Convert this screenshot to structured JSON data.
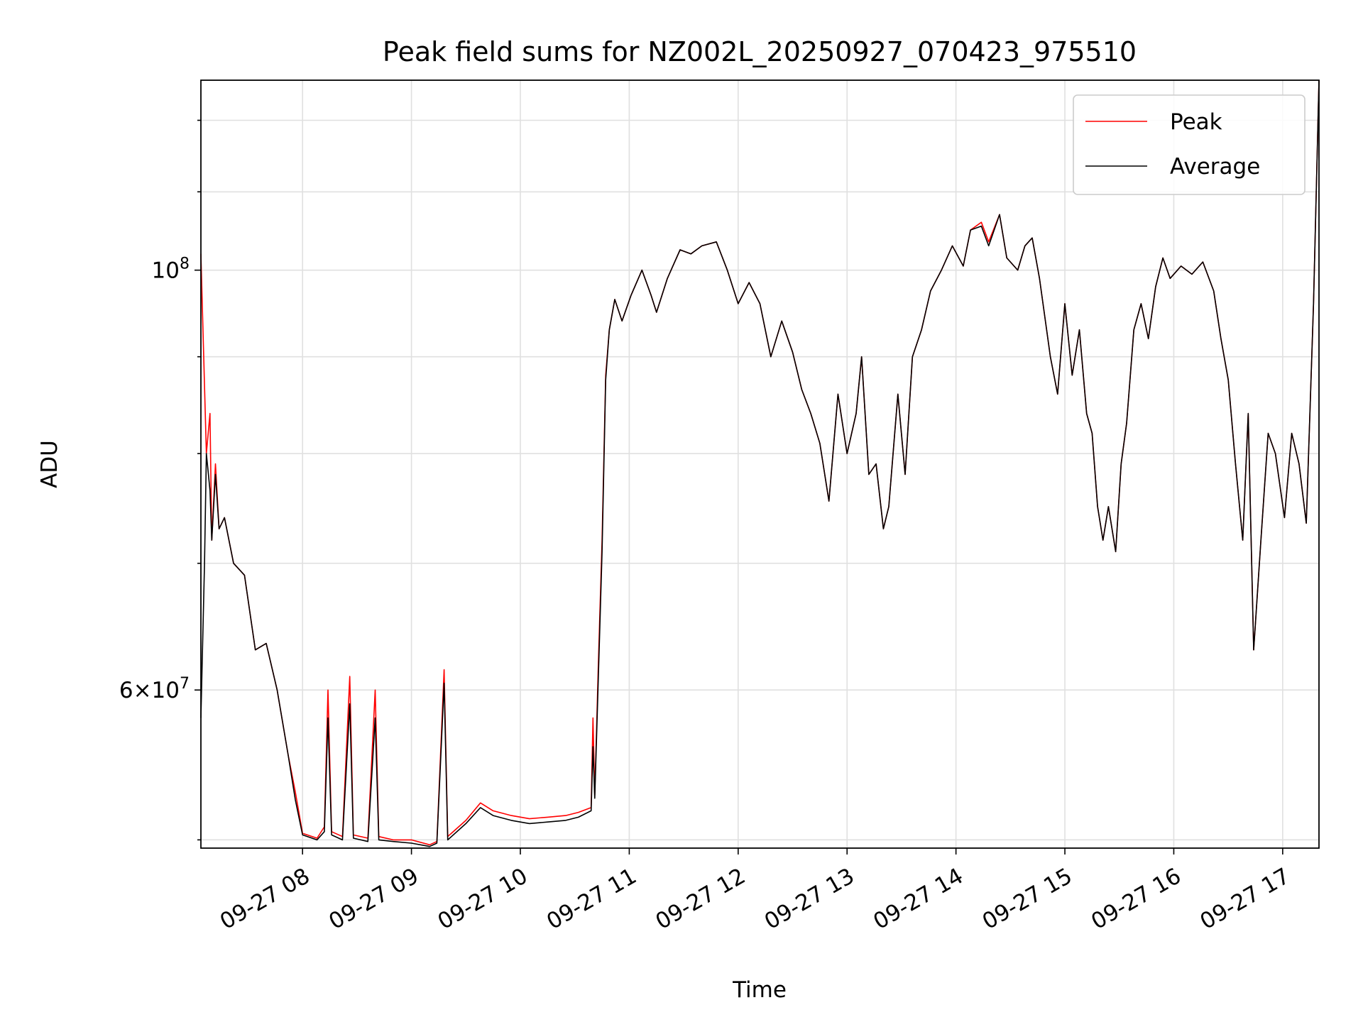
{
  "chart_data": {
    "type": "line",
    "title": "Peak field sums for NZ002L_20250927_070423_975510",
    "xlabel": "Time",
    "ylabel": "ADU",
    "y_scale": "log",
    "xlim": [
      "2025-09-27 07:04",
      "2025-09-27 17:20"
    ],
    "ylim": [
      49500000,
      126000000
    ],
    "x_ticks": [
      "09-27 08",
      "09-27 09",
      "09-27 10",
      "09-27 11",
      "09-27 12",
      "09-27 13",
      "09-27 14",
      "09-27 15",
      "09-27 16",
      "09-27 17"
    ],
    "y_ticks": [
      {
        "value": 100000000,
        "base": "10",
        "exp": "8",
        "coef": ""
      },
      {
        "value": 60000000,
        "base": "10",
        "exp": "7",
        "coef": "6"
      }
    ],
    "grid": true,
    "legend": {
      "position": "top-right",
      "entries": [
        "Peak",
        "Average"
      ]
    },
    "series": [
      {
        "name": "Peak",
        "color": "#ff0000",
        "points": [
          [
            "07:04",
            102000000
          ],
          [
            "07:07",
            80000000
          ],
          [
            "07:09",
            84000000
          ],
          [
            "07:10",
            72000000
          ],
          [
            "07:12",
            79000000
          ],
          [
            "07:14",
            73000000
          ],
          [
            "07:17",
            74000000
          ],
          [
            "07:22",
            70000000
          ],
          [
            "07:28",
            69000000
          ],
          [
            "07:34",
            63000000
          ],
          [
            "07:40",
            63500000
          ],
          [
            "07:46",
            60000000
          ],
          [
            "07:52",
            55500000
          ],
          [
            "07:56",
            53000000
          ],
          [
            "08:00",
            50400000
          ],
          [
            "08:08",
            50100000
          ],
          [
            "08:12",
            50800000
          ],
          [
            "08:14",
            60000000
          ],
          [
            "08:16",
            50500000
          ],
          [
            "08:22",
            50200000
          ],
          [
            "08:26",
            61000000
          ],
          [
            "08:28",
            50300000
          ],
          [
            "08:36",
            50100000
          ],
          [
            "08:40",
            60000000
          ],
          [
            "08:42",
            50200000
          ],
          [
            "08:50",
            50000000
          ],
          [
            "09:00",
            50000000
          ],
          [
            "09:10",
            49700000
          ],
          [
            "09:14",
            49900000
          ],
          [
            "09:18",
            61500000
          ],
          [
            "09:20",
            50200000
          ],
          [
            "09:30",
            51200000
          ],
          [
            "09:38",
            52300000
          ],
          [
            "09:45",
            51800000
          ],
          [
            "09:55",
            51500000
          ],
          [
            "10:05",
            51300000
          ],
          [
            "10:15",
            51400000
          ],
          [
            "10:25",
            51500000
          ],
          [
            "10:32",
            51700000
          ],
          [
            "10:39",
            52000000
          ],
          [
            "10:40",
            58000000
          ],
          [
            "10:41",
            52800000
          ],
          [
            "10:43",
            62000000
          ],
          [
            "10:45",
            72000000
          ],
          [
            "10:47",
            88000000
          ],
          [
            "10:49",
            93000000
          ],
          [
            "10:52",
            96500000
          ],
          [
            "10:56",
            94000000
          ],
          [
            "11:01",
            97000000
          ],
          [
            "11:07",
            100000000
          ],
          [
            "11:12",
            97000000
          ],
          [
            "11:15",
            95000000
          ],
          [
            "11:21",
            99000000
          ],
          [
            "11:28",
            102500000
          ],
          [
            "11:34",
            102000000
          ],
          [
            "11:40",
            103000000
          ],
          [
            "11:48",
            103500000
          ],
          [
            "11:54",
            100000000
          ],
          [
            "12:00",
            96000000
          ],
          [
            "12:06",
            98500000
          ],
          [
            "12:12",
            96000000
          ],
          [
            "12:18",
            90000000
          ],
          [
            "12:24",
            94000000
          ],
          [
            "12:30",
            90500000
          ],
          [
            "12:35",
            86500000
          ],
          [
            "12:40",
            84000000
          ],
          [
            "12:45",
            81000000
          ],
          [
            "12:50",
            75500000
          ],
          [
            "12:55",
            86000000
          ],
          [
            "13:00",
            80000000
          ],
          [
            "13:05",
            84000000
          ],
          [
            "13:08",
            90000000
          ],
          [
            "13:12",
            78000000
          ],
          [
            "13:16",
            79000000
          ],
          [
            "13:20",
            73000000
          ],
          [
            "13:23",
            75000000
          ],
          [
            "13:28",
            86000000
          ],
          [
            "13:32",
            78000000
          ],
          [
            "13:36",
            90000000
          ],
          [
            "13:41",
            93000000
          ],
          [
            "13:46",
            97500000
          ],
          [
            "13:52",
            100000000
          ],
          [
            "13:58",
            103000000
          ],
          [
            "14:04",
            100500000
          ],
          [
            "14:08",
            105000000
          ],
          [
            "14:14",
            106000000
          ],
          [
            "14:18",
            103500000
          ],
          [
            "14:24",
            107000000
          ],
          [
            "14:28",
            101500000
          ],
          [
            "14:34",
            100000000
          ],
          [
            "14:38",
            103000000
          ],
          [
            "14:42",
            104000000
          ],
          [
            "14:46",
            99000000
          ],
          [
            "14:52",
            90000000
          ],
          [
            "14:56",
            86000000
          ],
          [
            "15:00",
            96000000
          ],
          [
            "15:04",
            88000000
          ],
          [
            "15:08",
            93000000
          ],
          [
            "15:12",
            84000000
          ],
          [
            "15:15",
            82000000
          ],
          [
            "15:18",
            75000000
          ],
          [
            "15:21",
            72000000
          ],
          [
            "15:24",
            75000000
          ],
          [
            "15:28",
            71000000
          ],
          [
            "15:31",
            79000000
          ],
          [
            "15:34",
            83000000
          ],
          [
            "15:38",
            93000000
          ],
          [
            "15:42",
            96000000
          ],
          [
            "15:46",
            92000000
          ],
          [
            "15:50",
            98000000
          ],
          [
            "15:54",
            101500000
          ],
          [
            "15:58",
            99000000
          ],
          [
            "16:04",
            100500000
          ],
          [
            "16:10",
            99500000
          ],
          [
            "16:16",
            101000000
          ],
          [
            "16:22",
            97500000
          ],
          [
            "16:26",
            92000000
          ],
          [
            "16:30",
            87500000
          ],
          [
            "16:34",
            79000000
          ],
          [
            "16:38",
            72000000
          ],
          [
            "16:41",
            84000000
          ],
          [
            "16:44",
            63000000
          ],
          [
            "16:48",
            72000000
          ],
          [
            "16:52",
            82000000
          ],
          [
            "16:56",
            80000000
          ],
          [
            "17:01",
            74000000
          ],
          [
            "17:05",
            82000000
          ],
          [
            "17:09",
            79000000
          ],
          [
            "17:13",
            73500000
          ],
          [
            "17:17",
            96000000
          ],
          [
            "17:20",
            126000000
          ]
        ]
      },
      {
        "name": "Average",
        "color": "#000000",
        "points": [
          [
            "07:04",
            58000000
          ],
          [
            "07:06",
            70000000
          ],
          [
            "07:07",
            80000000
          ],
          [
            "07:09",
            76500000
          ],
          [
            "07:10",
            72000000
          ],
          [
            "07:12",
            78000000
          ],
          [
            "07:14",
            73000000
          ],
          [
            "07:17",
            74000000
          ],
          [
            "07:22",
            70000000
          ],
          [
            "07:28",
            69000000
          ],
          [
            "07:34",
            63000000
          ],
          [
            "07:40",
            63500000
          ],
          [
            "07:46",
            60000000
          ],
          [
            "07:52",
            55500000
          ],
          [
            "07:56",
            52500000
          ],
          [
            "08:00",
            50300000
          ],
          [
            "08:08",
            50000000
          ],
          [
            "08:12",
            50500000
          ],
          [
            "08:14",
            58000000
          ],
          [
            "08:16",
            50300000
          ],
          [
            "08:22",
            50000000
          ],
          [
            "08:26",
            59000000
          ],
          [
            "08:28",
            50100000
          ],
          [
            "08:36",
            49900000
          ],
          [
            "08:40",
            58000000
          ],
          [
            "08:42",
            50000000
          ],
          [
            "08:50",
            49900000
          ],
          [
            "09:00",
            49800000
          ],
          [
            "09:10",
            49600000
          ],
          [
            "09:14",
            49800000
          ],
          [
            "09:18",
            60500000
          ],
          [
            "09:20",
            50000000
          ],
          [
            "09:30",
            51000000
          ],
          [
            "09:38",
            52000000
          ],
          [
            "09:45",
            51500000
          ],
          [
            "09:55",
            51200000
          ],
          [
            "10:05",
            51000000
          ],
          [
            "10:15",
            51100000
          ],
          [
            "10:25",
            51200000
          ],
          [
            "10:32",
            51400000
          ],
          [
            "10:39",
            51800000
          ],
          [
            "10:40",
            56000000
          ],
          [
            "10:41",
            52600000
          ],
          [
            "10:43",
            61000000
          ],
          [
            "10:45",
            71000000
          ],
          [
            "10:47",
            87500000
          ],
          [
            "10:49",
            93000000
          ],
          [
            "10:52",
            96500000
          ],
          [
            "10:56",
            94000000
          ],
          [
            "11:01",
            97000000
          ],
          [
            "11:07",
            100000000
          ],
          [
            "11:12",
            97000000
          ],
          [
            "11:15",
            95000000
          ],
          [
            "11:21",
            99000000
          ],
          [
            "11:28",
            102500000
          ],
          [
            "11:34",
            102000000
          ],
          [
            "11:40",
            103000000
          ],
          [
            "11:48",
            103500000
          ],
          [
            "11:54",
            100000000
          ],
          [
            "12:00",
            96000000
          ],
          [
            "12:06",
            98500000
          ],
          [
            "12:12",
            96000000
          ],
          [
            "12:18",
            90000000
          ],
          [
            "12:24",
            94000000
          ],
          [
            "12:30",
            90500000
          ],
          [
            "12:35",
            86500000
          ],
          [
            "12:40",
            84000000
          ],
          [
            "12:45",
            81000000
          ],
          [
            "12:50",
            75500000
          ],
          [
            "12:55",
            86000000
          ],
          [
            "13:00",
            80000000
          ],
          [
            "13:05",
            84000000
          ],
          [
            "13:08",
            90000000
          ],
          [
            "13:12",
            78000000
          ],
          [
            "13:16",
            79000000
          ],
          [
            "13:20",
            73000000
          ],
          [
            "13:23",
            75000000
          ],
          [
            "13:28",
            86000000
          ],
          [
            "13:32",
            78000000
          ],
          [
            "13:36",
            90000000
          ],
          [
            "13:41",
            93000000
          ],
          [
            "13:46",
            97500000
          ],
          [
            "13:52",
            100000000
          ],
          [
            "13:58",
            103000000
          ],
          [
            "14:04",
            100500000
          ],
          [
            "14:08",
            105000000
          ],
          [
            "14:14",
            105500000
          ],
          [
            "14:18",
            103000000
          ],
          [
            "14:24",
            107000000
          ],
          [
            "14:28",
            101500000
          ],
          [
            "14:34",
            100000000
          ],
          [
            "14:38",
            103000000
          ],
          [
            "14:42",
            104000000
          ],
          [
            "14:46",
            99000000
          ],
          [
            "14:52",
            90000000
          ],
          [
            "14:56",
            86000000
          ],
          [
            "15:00",
            96000000
          ],
          [
            "15:04",
            88000000
          ],
          [
            "15:08",
            93000000
          ],
          [
            "15:12",
            84000000
          ],
          [
            "15:15",
            82000000
          ],
          [
            "15:18",
            75000000
          ],
          [
            "15:21",
            72000000
          ],
          [
            "15:24",
            75000000
          ],
          [
            "15:28",
            71000000
          ],
          [
            "15:31",
            79000000
          ],
          [
            "15:34",
            83000000
          ],
          [
            "15:38",
            93000000
          ],
          [
            "15:42",
            96000000
          ],
          [
            "15:46",
            92000000
          ],
          [
            "15:50",
            98000000
          ],
          [
            "15:54",
            101500000
          ],
          [
            "15:58",
            99000000
          ],
          [
            "16:04",
            100500000
          ],
          [
            "16:10",
            99500000
          ],
          [
            "16:16",
            101000000
          ],
          [
            "16:22",
            97500000
          ],
          [
            "16:26",
            92000000
          ],
          [
            "16:30",
            87500000
          ],
          [
            "16:34",
            79000000
          ],
          [
            "16:38",
            72000000
          ],
          [
            "16:41",
            84000000
          ],
          [
            "16:44",
            63000000
          ],
          [
            "16:48",
            72000000
          ],
          [
            "16:52",
            82000000
          ],
          [
            "16:56",
            80000000
          ],
          [
            "17:01",
            74000000
          ],
          [
            "17:05",
            82000000
          ],
          [
            "17:09",
            79000000
          ],
          [
            "17:13",
            73500000
          ],
          [
            "17:17",
            96000000
          ],
          [
            "17:20",
            126000000
          ]
        ]
      }
    ]
  }
}
